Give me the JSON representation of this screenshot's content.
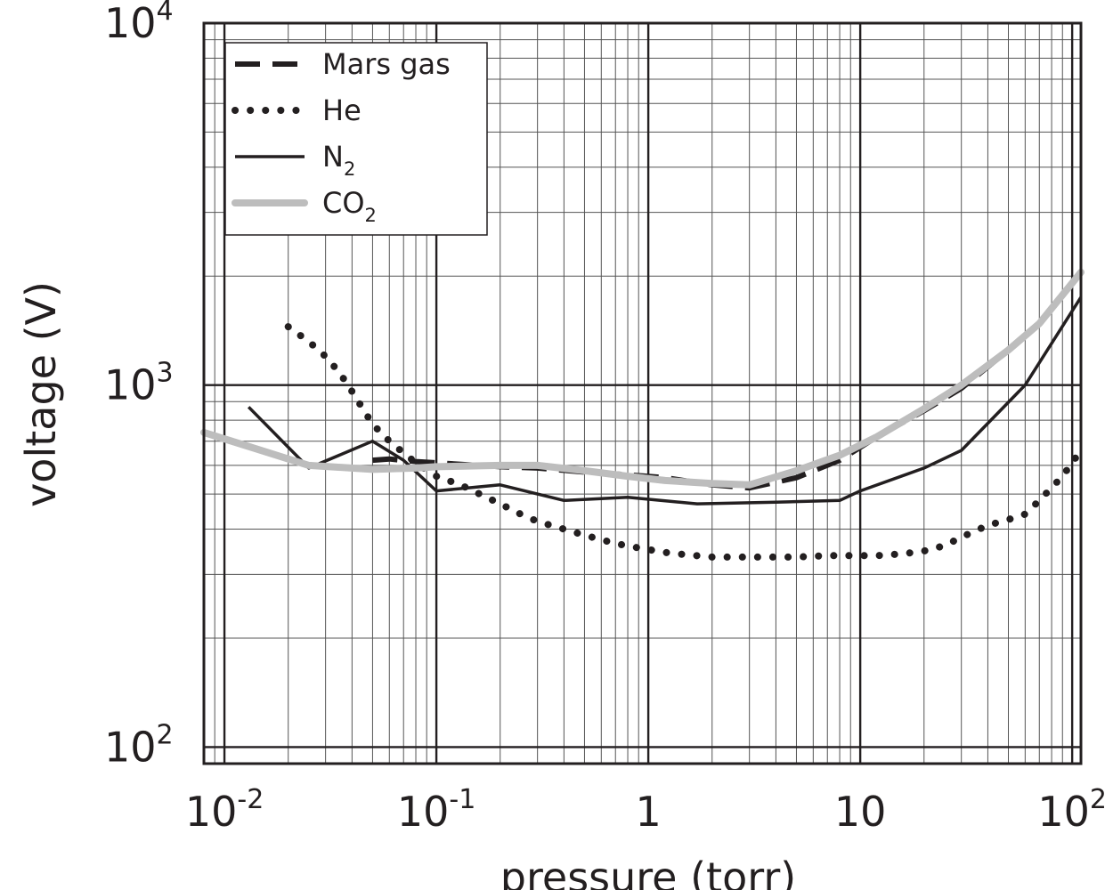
{
  "chart_data": {
    "type": "line",
    "xlabel": "pressure (torr)",
    "ylabel": "voltage (V)",
    "xscale": "log",
    "yscale": "log",
    "xlim": [
      0.008,
      110
    ],
    "ylim": [
      90,
      10000
    ],
    "grid": true,
    "legend_position": "top-left",
    "x_tick_labels": [
      {
        "base": "10",
        "exp": "-2"
      },
      {
        "base": "10",
        "exp": "-1"
      },
      {
        "base": "1",
        "exp": ""
      },
      {
        "base": "10",
        "exp": ""
      },
      {
        "base": "10",
        "exp": "2"
      }
    ],
    "y_tick_labels": [
      {
        "base": "10",
        "exp": "2"
      },
      {
        "base": "10",
        "exp": "3"
      },
      {
        "base": "10",
        "exp": "4"
      }
    ],
    "series": [
      {
        "name": "Mars gas",
        "name_sub": "",
        "style": "dashed",
        "color": "#231f20",
        "x": [
          0.05,
          0.06,
          0.08,
          0.1,
          0.2,
          0.3,
          0.5,
          0.8,
          1.2,
          2,
          3,
          5,
          8,
          12,
          20,
          30,
          50
        ],
        "y": [
          620,
          625,
          615,
          610,
          595,
          590,
          575,
          565,
          555,
          530,
          520,
          555,
          620,
          720,
          850,
          980,
          1250
        ]
      },
      {
        "name": "He",
        "name_sub": "",
        "style": "dotted",
        "color": "#231f20",
        "x": [
          0.02,
          0.025,
          0.03,
          0.035,
          0.04,
          0.045,
          0.05,
          0.06,
          0.07,
          0.08,
          0.1,
          0.13,
          0.16,
          0.2,
          0.25,
          0.3,
          0.4,
          0.5,
          0.7,
          0.9,
          1.2,
          1.5,
          2,
          2.5,
          3.5,
          5,
          7,
          9,
          12,
          16,
          20,
          25,
          30,
          40,
          50,
          60,
          70,
          90,
          110
        ],
        "y": [
          1450,
          1320,
          1200,
          1080,
          960,
          860,
          780,
          700,
          650,
          610,
          560,
          530,
          500,
          470,
          440,
          420,
          400,
          385,
          365,
          355,
          345,
          340,
          335,
          335,
          335,
          335,
          338,
          338,
          338,
          342,
          348,
          360,
          380,
          410,
          425,
          440,
          480,
          560,
          660
        ]
      },
      {
        "name": "N",
        "name_sub": "2",
        "style": "solid",
        "color": "#231f20",
        "x": [
          0.013,
          0.025,
          0.05,
          0.07,
          0.1,
          0.2,
          0.4,
          0.8,
          1.7,
          4,
          8,
          10,
          20,
          30,
          60,
          110
        ],
        "y": [
          870,
          590,
          700,
          620,
          510,
          530,
          480,
          490,
          470,
          475,
          480,
          510,
          590,
          660,
          1000,
          1750
        ]
      },
      {
        "name": "CO",
        "name_sub": "2",
        "style": "solid-thick",
        "color": "#bdbdbd",
        "x": [
          0.008,
          0.025,
          0.05,
          0.08,
          0.1,
          0.2,
          0.3,
          0.5,
          0.8,
          1.2,
          2,
          3,
          5,
          8,
          12,
          20,
          30,
          50,
          70,
          110
        ],
        "y": [
          740,
          600,
          585,
          590,
          595,
          600,
          600,
          580,
          560,
          545,
          535,
          530,
          580,
          640,
          720,
          860,
          1000,
          1250,
          1480,
          2050
        ]
      }
    ]
  }
}
